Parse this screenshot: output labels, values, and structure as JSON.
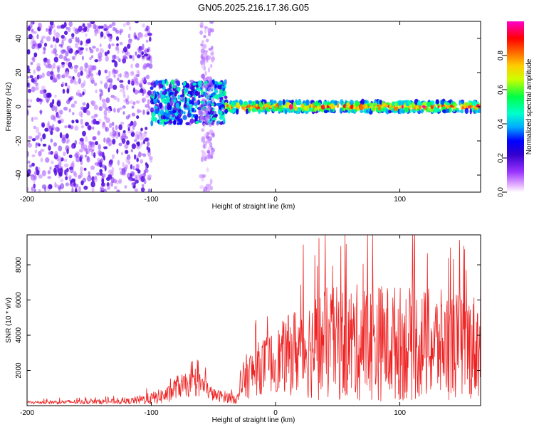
{
  "title": "GN05.2025.216.17.36.G05",
  "chart_data": [
    {
      "type": "heatmap",
      "xlabel": "Height of straight line (km)",
      "ylabel": "Frequency (Hz)",
      "xlim": [
        -200,
        165
      ],
      "ylim": [
        -50,
        50
      ],
      "xticks": [
        -200,
        -100,
        0,
        100
      ],
      "yticks": [
        -40,
        -20,
        0,
        20,
        40
      ],
      "colorbar": {
        "label": "Normalized spectral amplitude",
        "range": [
          0,
          1
        ],
        "ticks": [
          0.0,
          0.2,
          0.4,
          0.6,
          0.8
        ],
        "colors": [
          "#ffffff",
          "#cc66ff",
          "#6600cc",
          "#0000ff",
          "#00ccff",
          "#00ff66",
          "#aaff00",
          "#ffff00",
          "#ff9900",
          "#ff0000",
          "#ff00cc"
        ]
      },
      "clusters": [
        {
          "x": [
            -200,
            -100
          ],
          "y": [
            -50,
            50
          ],
          "level": 0.15,
          "density": 900
        },
        {
          "x": [
            -100,
            -40
          ],
          "y": [
            -10,
            15
          ],
          "level": 0.35,
          "density": 500
        },
        {
          "x": [
            -60,
            -50
          ],
          "y": [
            -50,
            50
          ],
          "level": 0.1,
          "density": 120
        },
        {
          "x": [
            -40,
            165
          ],
          "y": [
            -3,
            3
          ],
          "level": 0.9,
          "density": 700
        }
      ],
      "trend": [
        {
          "x": -200,
          "y": 0
        },
        {
          "x": -100,
          "y": 2
        },
        {
          "x": -60,
          "y": 5
        },
        {
          "x": -40,
          "y": 3
        },
        {
          "x": 0,
          "y": 1
        },
        {
          "x": 100,
          "y": 0
        },
        {
          "x": 165,
          "y": -2
        }
      ]
    },
    {
      "type": "line",
      "xlabel": "Height of straight line (km)",
      "ylabel": "SNR (10 * v/v)",
      "xlim": [
        -200,
        165
      ],
      "ylim": [
        0,
        9700
      ],
      "xticks": [
        -200,
        -100,
        0,
        100
      ],
      "yticks": [
        2000,
        4000,
        6000,
        8000
      ],
      "color": "#ee2222",
      "envelope": [
        {
          "x": -200,
          "base": 150,
          "amp": 200
        },
        {
          "x": -120,
          "base": 200,
          "amp": 300
        },
        {
          "x": -100,
          "base": 300,
          "amp": 700
        },
        {
          "x": -85,
          "base": 500,
          "amp": 1000
        },
        {
          "x": -80,
          "base": 900,
          "amp": 1300
        },
        {
          "x": -60,
          "base": 1000,
          "amp": 1400
        },
        {
          "x": -50,
          "base": 500,
          "amp": 700
        },
        {
          "x": -30,
          "base": 300,
          "amp": 600
        },
        {
          "x": -25,
          "base": 1200,
          "amp": 2500
        },
        {
          "x": -10,
          "base": 1800,
          "amp": 3200
        },
        {
          "x": 0,
          "base": 2000,
          "amp": 3600
        },
        {
          "x": 20,
          "base": 2400,
          "amp": 5500
        },
        {
          "x": 40,
          "base": 2500,
          "amp": 6500
        },
        {
          "x": 80,
          "base": 2600,
          "amp": 6800
        },
        {
          "x": 120,
          "base": 2500,
          "amp": 6400
        },
        {
          "x": 165,
          "base": 2500,
          "amp": 6000
        }
      ],
      "peaks": [
        {
          "x": 35,
          "y": 9500
        },
        {
          "x": 78,
          "y": 9700
        },
        {
          "x": 148,
          "y": 9400
        },
        {
          "x": 165,
          "y": 8800
        }
      ]
    }
  ]
}
